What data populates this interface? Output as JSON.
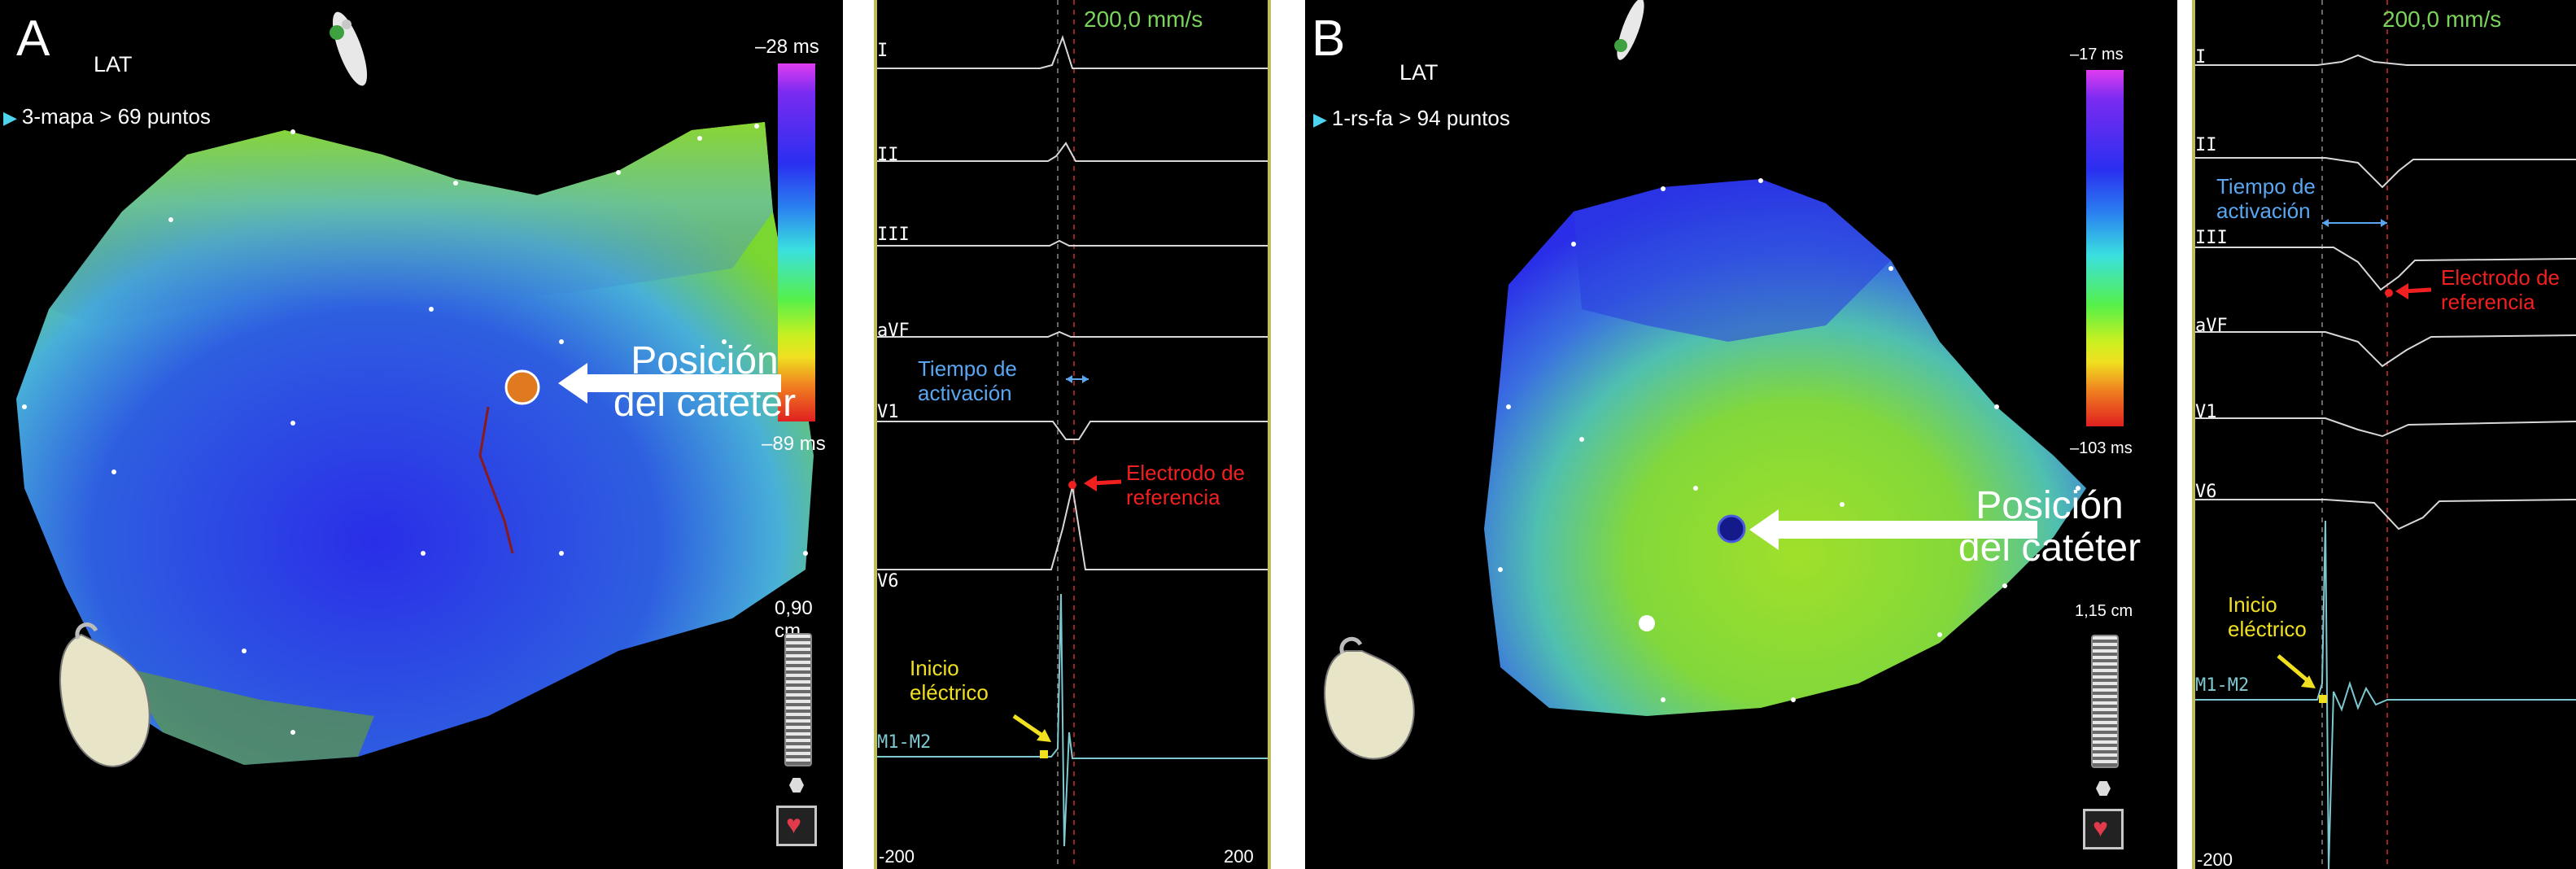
{
  "panel_a": {
    "letter": "A",
    "map_type": "LAT",
    "map_caption": "3-mapa > 69 puntos",
    "colorbar_top": "–28 ms",
    "colorbar_bottom": "–89 ms",
    "scale": "0,90 cm",
    "catheter_line1": "Posición",
    "catheter_line2": "del catéter",
    "ecg": {
      "speed": "200,0 mm/s",
      "leads": [
        "I",
        "II",
        "III",
        "aVF",
        "V1",
        "V6",
        "M1-M2"
      ],
      "axis_left": "-200",
      "axis_right": "200",
      "activation_line1": "Tiempo de",
      "activation_line2": "activación",
      "reference_line1": "Electrodo de",
      "reference_line2": "referencia",
      "onset_line1": "Inicio",
      "onset_line2": "eléctrico"
    }
  },
  "panel_b": {
    "letter": "B",
    "map_type": "LAT",
    "map_caption": "1-rs-fa > 94 puntos",
    "colorbar_top": "–17 ms",
    "colorbar_bottom": "–103 ms",
    "scale": "1,15 cm",
    "catheter_line1": "Posición",
    "catheter_line2": "del catéter",
    "ecg": {
      "speed": "200,0 mm/s",
      "leads": [
        "I",
        "II",
        "III",
        "aVF",
        "V1",
        "V6",
        "M1-M2"
      ],
      "axis_left": "-200",
      "activation_line1": "Tiempo de",
      "activation_line2": "activación",
      "reference_line1": "Electrodo de",
      "reference_line2": "referencia",
      "onset_line1": "Inicio",
      "onset_line2": "eléctrico"
    }
  },
  "colors": {
    "map_blue": "#2a3ae0",
    "map_green": "#7ad630",
    "catheter_a": "#e07a20",
    "catheter_b": "#141a8a",
    "annotation_blue": "#5aa6f0",
    "annotation_red": "#f02020",
    "annotation_yellow": "#f0e020",
    "speed_green": "#7ad35a"
  },
  "icons": [
    "heart-model-icon",
    "orientation-icon",
    "scale-slider-icon",
    "heart-button-icon"
  ]
}
